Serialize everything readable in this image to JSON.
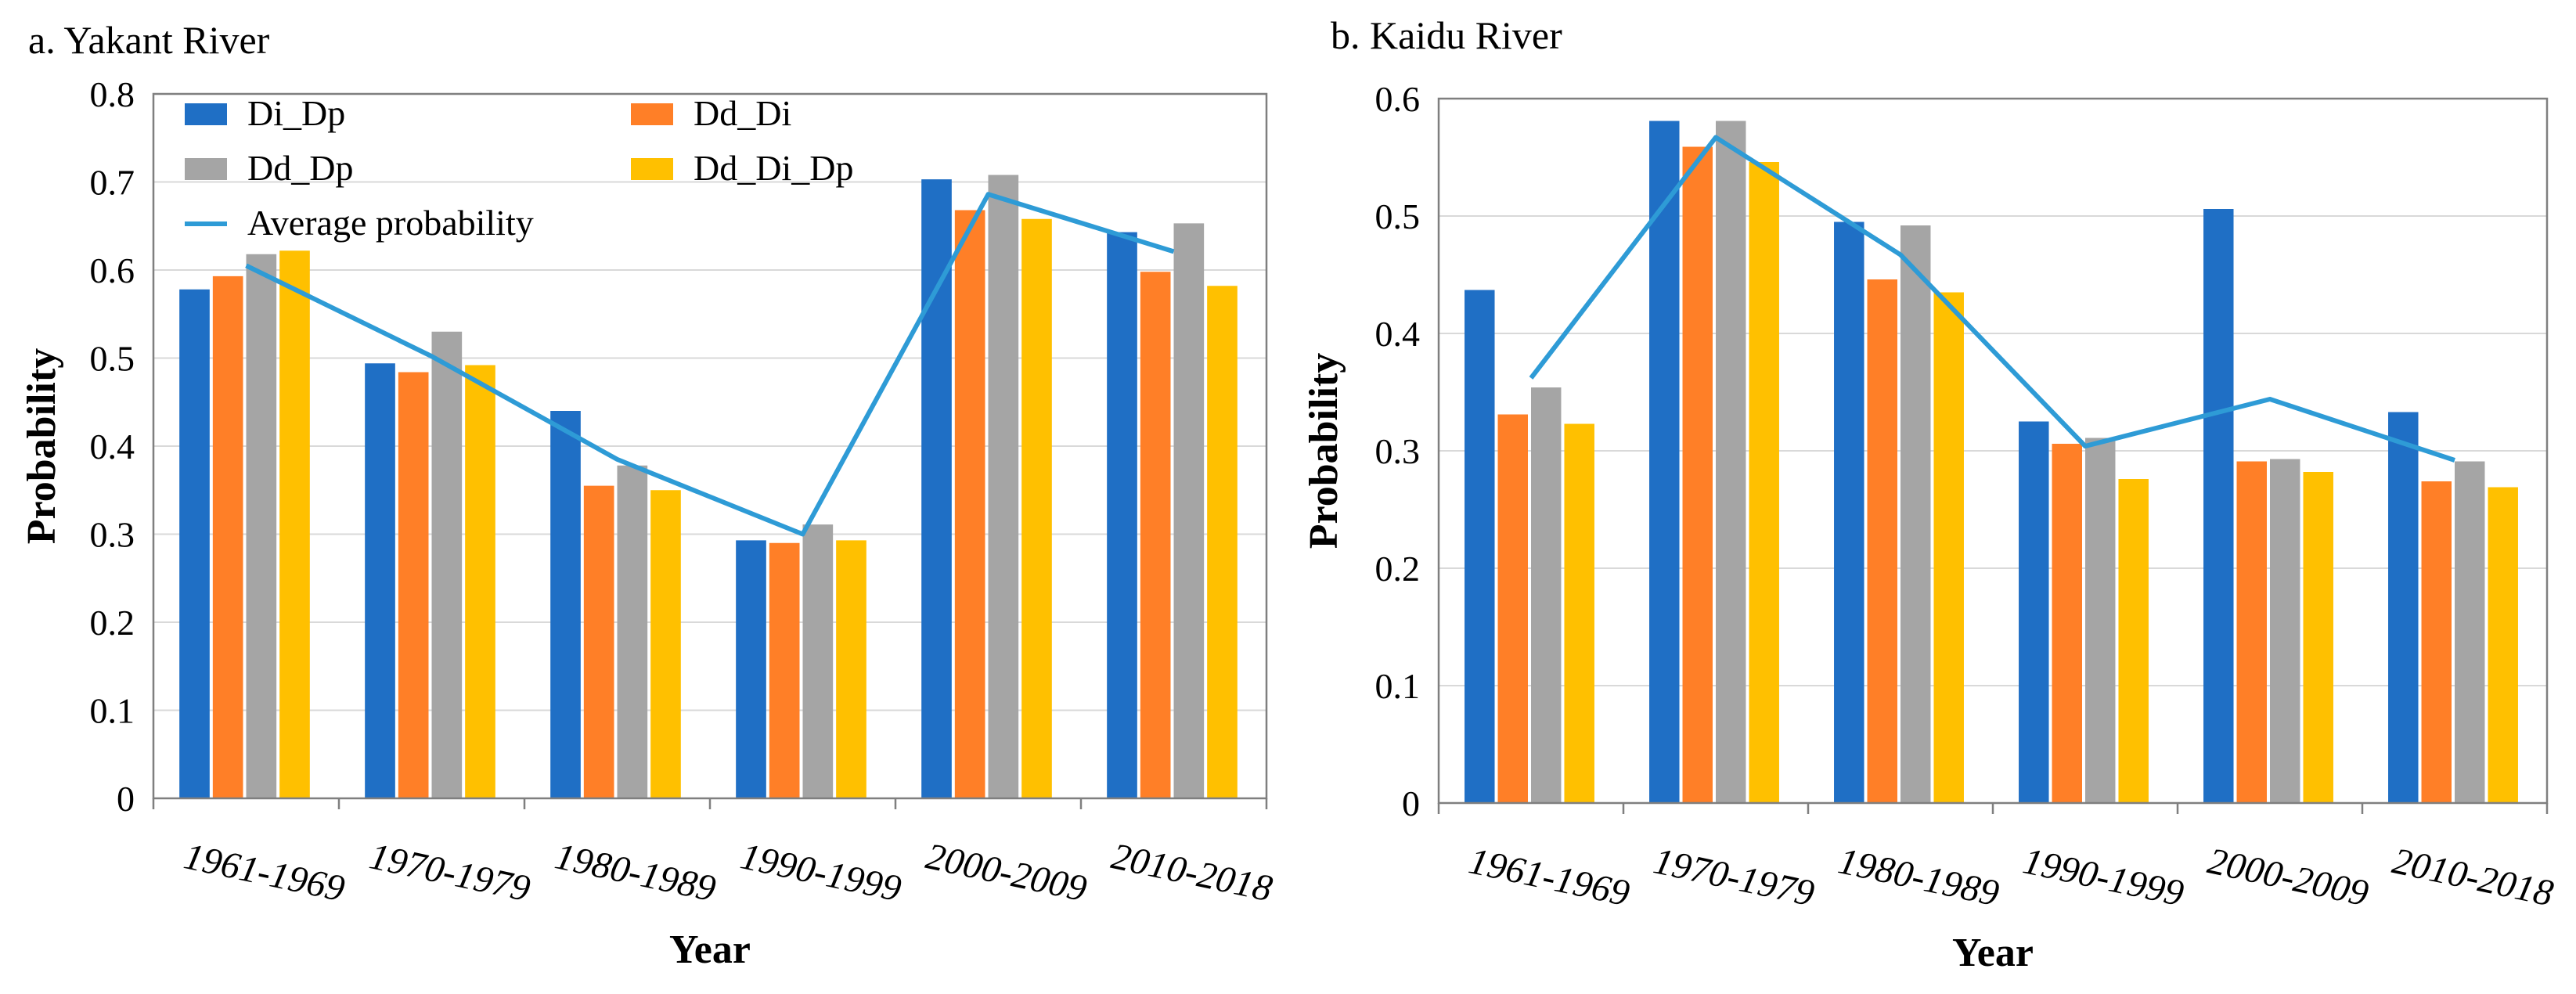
{
  "chart_data": [
    {
      "type": "bar",
      "title": "a. Yakant River",
      "xlabel": "Year",
      "ylabel": "Probability",
      "ylim": [
        0,
        0.8
      ],
      "yticks": [
        "0",
        "0.1",
        "0.2",
        "0.3",
        "0.4",
        "0.5",
        "0.6",
        "0.7",
        "0.8"
      ],
      "categories": [
        "1961-1969",
        "1970-1979",
        "1980-1989",
        "1990-1999",
        "2000-2009",
        "2010-2018"
      ],
      "series": [
        {
          "name": "Di_Dp",
          "color": "#1F6FC5",
          "values": [
            0.578,
            0.494,
            0.44,
            0.293,
            0.703,
            0.643
          ]
        },
        {
          "name": "Dd_Di",
          "color": "#FF7F27",
          "values": [
            0.593,
            0.484,
            0.355,
            0.29,
            0.668,
            0.598
          ]
        },
        {
          "name": "Dd_Dp",
          "color": "#A5A5A5",
          "values": [
            0.618,
            0.53,
            0.378,
            0.311,
            0.708,
            0.653
          ]
        },
        {
          "name": "Dd_Di_Dp",
          "color": "#FFC000",
          "values": [
            0.622,
            0.492,
            0.35,
            0.293,
            0.658,
            0.582
          ]
        }
      ],
      "line": {
        "name": "Average probability",
        "color": "#2E9BD6",
        "values": [
          0.605,
          0.502,
          0.385,
          0.3,
          0.686,
          0.621
        ]
      }
    },
    {
      "type": "bar",
      "title": "b. Kaidu River",
      "xlabel": "Year",
      "ylabel": "Probability",
      "ylim": [
        0,
        0.6
      ],
      "yticks": [
        "0",
        "0.1",
        "0.2",
        "0.3",
        "0.4",
        "0.5",
        "0.6"
      ],
      "categories": [
        "1961-1969",
        "1970-1979",
        "1980-1989",
        "1990-1999",
        "2000-2009",
        "2010-2018"
      ],
      "series": [
        {
          "name": "Di_Dp",
          "color": "#1F6FC5",
          "values": [
            0.437,
            0.581,
            0.495,
            0.325,
            0.506,
            0.333
          ]
        },
        {
          "name": "Dd_Di",
          "color": "#FF7F27",
          "values": [
            0.331,
            0.559,
            0.446,
            0.306,
            0.291,
            0.274
          ]
        },
        {
          "name": "Dd_Dp",
          "color": "#A5A5A5",
          "values": [
            0.354,
            0.581,
            0.492,
            0.311,
            0.293,
            0.291
          ]
        },
        {
          "name": "Dd_Di_Dp",
          "color": "#FFC000",
          "values": [
            0.323,
            0.546,
            0.435,
            0.276,
            0.282,
            0.269
          ]
        }
      ],
      "line": {
        "name": "Average probability",
        "color": "#2E9BD6",
        "values": [
          0.362,
          0.567,
          0.467,
          0.304,
          0.344,
          0.292
        ]
      }
    }
  ]
}
